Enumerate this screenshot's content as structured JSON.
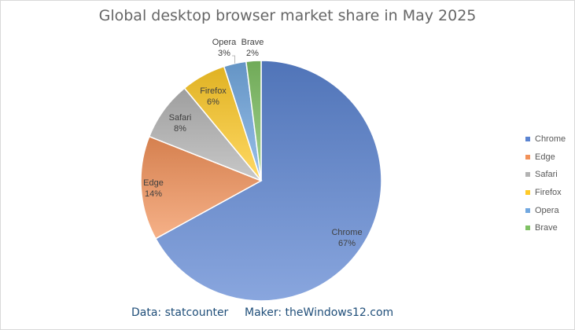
{
  "chart_data": {
    "type": "pie",
    "title": "Global desktop browser market share in May 2025",
    "categories": [
      "Chrome",
      "Edge",
      "Safari",
      "Firefox",
      "Opera",
      "Brave"
    ],
    "values": [
      67,
      14,
      8,
      6,
      3,
      2
    ],
    "value_labels": [
      "67%",
      "14%",
      "8%",
      "6%",
      "3%",
      "2%"
    ],
    "colors": [
      "#5b84d1",
      "#f2925a",
      "#b3b3b3",
      "#ffca28",
      "#72a8e0",
      "#7fc164"
    ],
    "legend_position": "right"
  },
  "footer": {
    "source": "Data: statcounter",
    "maker": "Maker: theWindows12.com"
  }
}
